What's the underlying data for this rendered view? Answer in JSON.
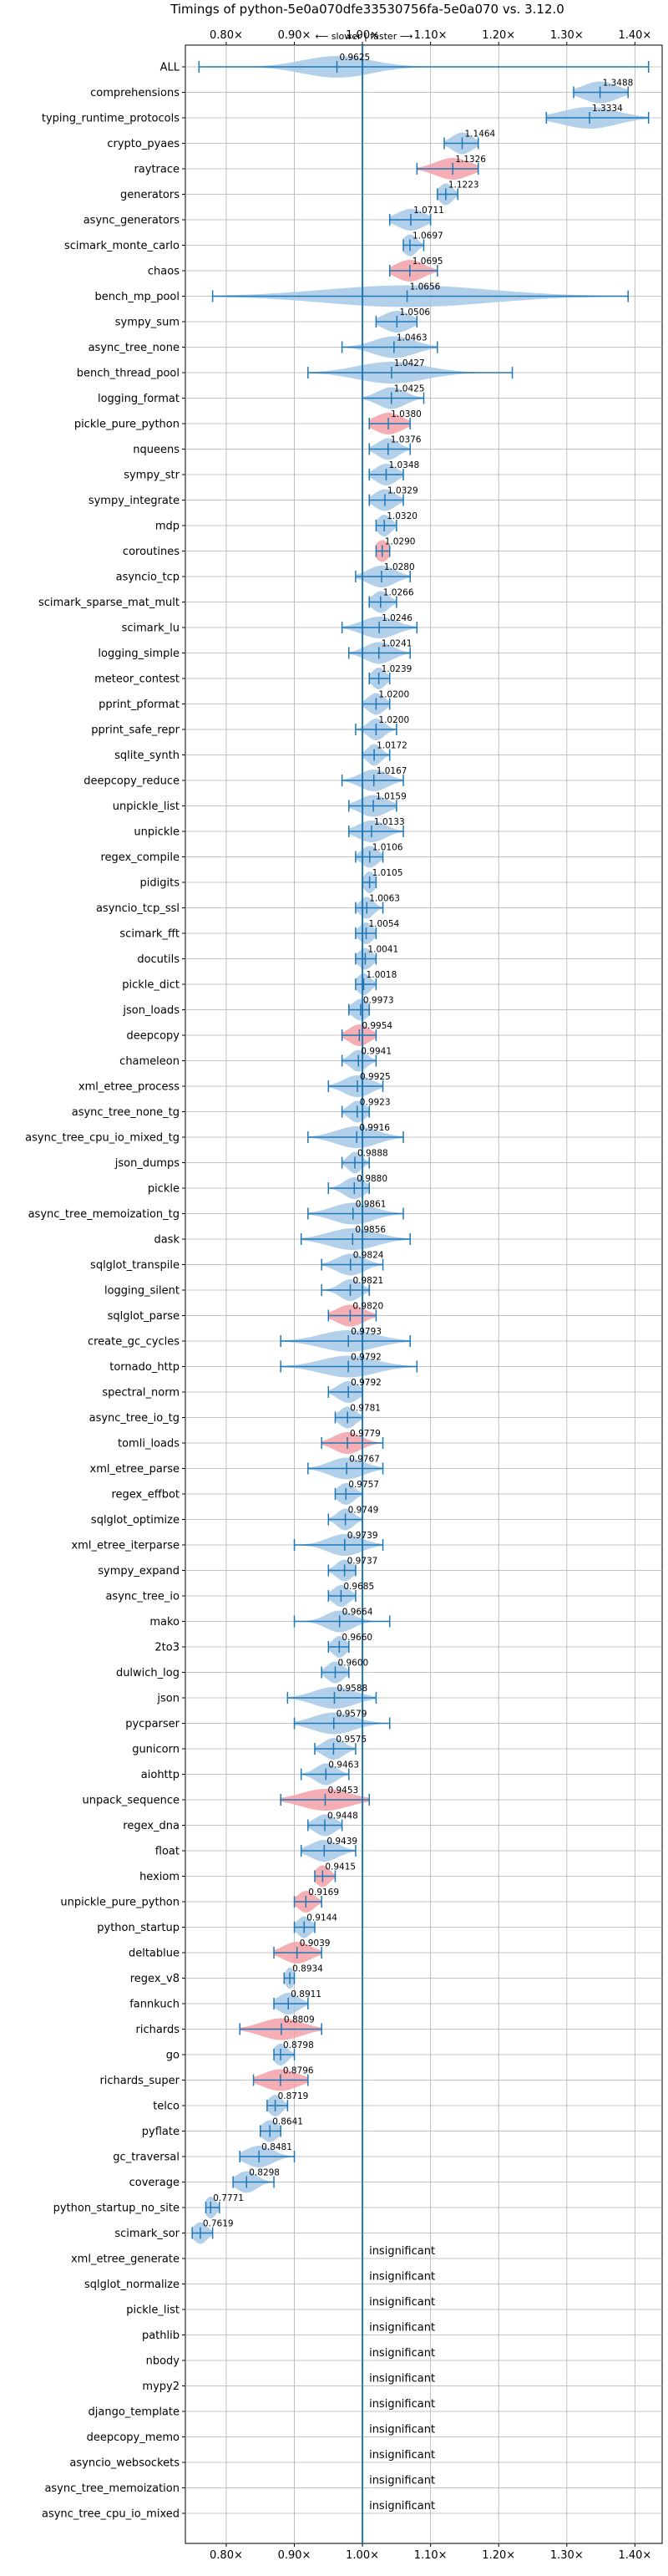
{
  "chart_data": {
    "type": "violin",
    "title": "Timings of python-5e0a070dfe33530756fa-5e0a070 vs. 3.12.0",
    "direction_label": "⟵ slower | faster ⟶",
    "xlim": [
      0.74,
      1.44
    ],
    "xticks": [
      0.8,
      0.9,
      1.0,
      1.1,
      1.2,
      1.3,
      1.4
    ],
    "xtick_labels": [
      "0.80×",
      "0.90×",
      "1.00×",
      "1.10×",
      "1.20×",
      "1.30×",
      "1.40×"
    ],
    "grid": true,
    "reference_line": 1.0,
    "insignificant_label": "insignificant",
    "colors": {
      "normal": "#a6c8e8",
      "highlight": "#f4a0a8",
      "line": "#1f77b4",
      "grid": "#b0b0b0"
    },
    "benchmarks": [
      {
        "name": "ALL",
        "value": 0.9625,
        "min": 0.76,
        "max": 1.42,
        "spread": 0.05,
        "highlight": false,
        "value_label": "0.9625"
      },
      {
        "name": "comprehensions",
        "value": 1.3488,
        "min": 1.31,
        "max": 1.39,
        "spread": 0.025,
        "highlight": false,
        "value_label": "1.3488"
      },
      {
        "name": "typing_runtime_protocols",
        "value": 1.3334,
        "min": 1.27,
        "max": 1.42,
        "spread": 0.04,
        "highlight": false,
        "value_label": "1.3334"
      },
      {
        "name": "crypto_pyaes",
        "value": 1.1464,
        "min": 1.12,
        "max": 1.17,
        "spread": 0.015,
        "highlight": false,
        "value_label": "1.1464"
      },
      {
        "name": "raytrace",
        "value": 1.1326,
        "min": 1.08,
        "max": 1.17,
        "spread": 0.025,
        "highlight": true,
        "value_label": "1.1326"
      },
      {
        "name": "generators",
        "value": 1.1223,
        "min": 1.11,
        "max": 1.14,
        "spread": 0.01,
        "highlight": false,
        "value_label": "1.1223"
      },
      {
        "name": "async_generators",
        "value": 1.0711,
        "min": 1.04,
        "max": 1.1,
        "spread": 0.02,
        "highlight": false,
        "value_label": "1.0711"
      },
      {
        "name": "scimark_monte_carlo",
        "value": 1.0697,
        "min": 1.06,
        "max": 1.09,
        "spread": 0.01,
        "highlight": false,
        "value_label": "1.0697"
      },
      {
        "name": "chaos",
        "value": 1.0695,
        "min": 1.04,
        "max": 1.11,
        "spread": 0.02,
        "highlight": true,
        "value_label": "1.0695"
      },
      {
        "name": "bench_mp_pool",
        "value": 1.0656,
        "min": 0.78,
        "max": 1.39,
        "spread": 0.12,
        "highlight": false,
        "value_label": "1.0656"
      },
      {
        "name": "sympy_sum",
        "value": 1.0506,
        "min": 1.02,
        "max": 1.08,
        "spread": 0.02,
        "highlight": false,
        "value_label": "1.0506"
      },
      {
        "name": "async_tree_none",
        "value": 1.0463,
        "min": 0.97,
        "max": 1.11,
        "spread": 0.03,
        "highlight": false,
        "value_label": "1.0463"
      },
      {
        "name": "bench_thread_pool",
        "value": 1.0427,
        "min": 0.92,
        "max": 1.22,
        "spread": 0.05,
        "highlight": false,
        "value_label": "1.0427"
      },
      {
        "name": "logging_format",
        "value": 1.0425,
        "min": 1.0,
        "max": 1.09,
        "spread": 0.02,
        "highlight": false,
        "value_label": "1.0425"
      },
      {
        "name": "pickle_pure_python",
        "value": 1.038,
        "min": 1.01,
        "max": 1.07,
        "spread": 0.02,
        "highlight": true,
        "value_label": "1.0380"
      },
      {
        "name": "nqueens",
        "value": 1.0376,
        "min": 1.01,
        "max": 1.07,
        "spread": 0.015,
        "highlight": false,
        "value_label": "1.0376"
      },
      {
        "name": "sympy_str",
        "value": 1.0348,
        "min": 1.01,
        "max": 1.06,
        "spread": 0.015,
        "highlight": false,
        "value_label": "1.0348"
      },
      {
        "name": "sympy_integrate",
        "value": 1.0329,
        "min": 1.01,
        "max": 1.06,
        "spread": 0.015,
        "highlight": false,
        "value_label": "1.0329"
      },
      {
        "name": "mdp",
        "value": 1.032,
        "min": 1.02,
        "max": 1.05,
        "spread": 0.01,
        "highlight": false,
        "value_label": "1.0320"
      },
      {
        "name": "coroutines",
        "value": 1.029,
        "min": 1.02,
        "max": 1.04,
        "spread": 0.01,
        "highlight": true,
        "value_label": "1.0290"
      },
      {
        "name": "asyncio_tcp",
        "value": 1.028,
        "min": 0.99,
        "max": 1.07,
        "spread": 0.02,
        "highlight": false,
        "value_label": "1.0280"
      },
      {
        "name": "scimark_sparse_mat_mult",
        "value": 1.0266,
        "min": 1.01,
        "max": 1.05,
        "spread": 0.012,
        "highlight": false,
        "value_label": "1.0266"
      },
      {
        "name": "scimark_lu",
        "value": 1.0246,
        "min": 0.97,
        "max": 1.08,
        "spread": 0.025,
        "highlight": false,
        "value_label": "1.0246"
      },
      {
        "name": "logging_simple",
        "value": 1.0241,
        "min": 0.98,
        "max": 1.07,
        "spread": 0.02,
        "highlight": false,
        "value_label": "1.0241"
      },
      {
        "name": "meteor_contest",
        "value": 1.0239,
        "min": 1.01,
        "max": 1.04,
        "spread": 0.01,
        "highlight": false,
        "value_label": "1.0239"
      },
      {
        "name": "pprint_pformat",
        "value": 1.02,
        "min": 1.0,
        "max": 1.04,
        "spread": 0.012,
        "highlight": false,
        "value_label": "1.0200"
      },
      {
        "name": "pprint_safe_repr",
        "value": 1.02,
        "min": 0.99,
        "max": 1.05,
        "spread": 0.012,
        "highlight": false,
        "value_label": "1.0200"
      },
      {
        "name": "sqlite_synth",
        "value": 1.0172,
        "min": 1.0,
        "max": 1.04,
        "spread": 0.01,
        "highlight": false,
        "value_label": "1.0172"
      },
      {
        "name": "deepcopy_reduce",
        "value": 1.0167,
        "min": 0.97,
        "max": 1.06,
        "spread": 0.02,
        "highlight": false,
        "value_label": "1.0167"
      },
      {
        "name": "unpickle_list",
        "value": 1.0159,
        "min": 0.98,
        "max": 1.05,
        "spread": 0.02,
        "highlight": false,
        "value_label": "1.0159"
      },
      {
        "name": "unpickle",
        "value": 1.0133,
        "min": 0.98,
        "max": 1.06,
        "spread": 0.02,
        "highlight": false,
        "value_label": "1.0133"
      },
      {
        "name": "regex_compile",
        "value": 1.0106,
        "min": 0.99,
        "max": 1.03,
        "spread": 0.012,
        "highlight": false,
        "value_label": "1.0106"
      },
      {
        "name": "pidigits",
        "value": 1.0105,
        "min": 1.0,
        "max": 1.02,
        "spread": 0.008,
        "highlight": false,
        "value_label": "1.0105"
      },
      {
        "name": "asyncio_tcp_ssl",
        "value": 1.0063,
        "min": 0.99,
        "max": 1.03,
        "spread": 0.01,
        "highlight": false,
        "value_label": "1.0063"
      },
      {
        "name": "scimark_fft",
        "value": 1.0054,
        "min": 0.99,
        "max": 1.02,
        "spread": 0.01,
        "highlight": false,
        "value_label": "1.0054"
      },
      {
        "name": "docutils",
        "value": 1.0041,
        "min": 0.99,
        "max": 1.02,
        "spread": 0.01,
        "highlight": false,
        "value_label": "1.0041"
      },
      {
        "name": "pickle_dict",
        "value": 1.0018,
        "min": 0.99,
        "max": 1.02,
        "spread": 0.01,
        "highlight": false,
        "value_label": "1.0018"
      },
      {
        "name": "json_loads",
        "value": 0.9973,
        "min": 0.98,
        "max": 1.01,
        "spread": 0.012,
        "highlight": false,
        "value_label": "0.9973"
      },
      {
        "name": "deepcopy",
        "value": 0.9954,
        "min": 0.97,
        "max": 1.02,
        "spread": 0.015,
        "highlight": true,
        "value_label": "0.9954"
      },
      {
        "name": "chameleon",
        "value": 0.9941,
        "min": 0.97,
        "max": 1.02,
        "spread": 0.012,
        "highlight": false,
        "value_label": "0.9941"
      },
      {
        "name": "xml_etree_process",
        "value": 0.9925,
        "min": 0.95,
        "max": 1.03,
        "spread": 0.02,
        "highlight": false,
        "value_label": "0.9925"
      },
      {
        "name": "async_tree_none_tg",
        "value": 0.9923,
        "min": 0.97,
        "max": 1.01,
        "spread": 0.012,
        "highlight": false,
        "value_label": "0.9923"
      },
      {
        "name": "async_tree_cpu_io_mixed_tg",
        "value": 0.9916,
        "min": 0.92,
        "max": 1.06,
        "spread": 0.03,
        "highlight": false,
        "value_label": "0.9916"
      },
      {
        "name": "json_dumps",
        "value": 0.9888,
        "min": 0.97,
        "max": 1.01,
        "spread": 0.01,
        "highlight": false,
        "value_label": "0.9888"
      },
      {
        "name": "pickle",
        "value": 0.988,
        "min": 0.95,
        "max": 1.01,
        "spread": 0.015,
        "highlight": false,
        "value_label": "0.9880"
      },
      {
        "name": "async_tree_memoization_tg",
        "value": 0.9861,
        "min": 0.92,
        "max": 1.06,
        "spread": 0.03,
        "highlight": false,
        "value_label": "0.9861"
      },
      {
        "name": "dask",
        "value": 0.9856,
        "min": 0.91,
        "max": 1.07,
        "spread": 0.035,
        "highlight": false,
        "value_label": "0.9856"
      },
      {
        "name": "sqlglot_transpile",
        "value": 0.9824,
        "min": 0.94,
        "max": 1.03,
        "spread": 0.02,
        "highlight": false,
        "value_label": "0.9824"
      },
      {
        "name": "logging_silent",
        "value": 0.9821,
        "min": 0.94,
        "max": 1.01,
        "spread": 0.015,
        "highlight": false,
        "value_label": "0.9821"
      },
      {
        "name": "sqlglot_parse",
        "value": 0.982,
        "min": 0.95,
        "max": 1.02,
        "spread": 0.02,
        "highlight": true,
        "value_label": "0.9820"
      },
      {
        "name": "create_gc_cycles",
        "value": 0.9793,
        "min": 0.88,
        "max": 1.07,
        "spread": 0.04,
        "highlight": false,
        "value_label": "0.9793"
      },
      {
        "name": "tornado_http",
        "value": 0.9792,
        "min": 0.88,
        "max": 1.08,
        "spread": 0.04,
        "highlight": false,
        "value_label": "0.9792"
      },
      {
        "name": "spectral_norm",
        "value": 0.9792,
        "min": 0.95,
        "max": 1.0,
        "spread": 0.015,
        "highlight": false,
        "value_label": "0.9792"
      },
      {
        "name": "async_tree_io_tg",
        "value": 0.9781,
        "min": 0.96,
        "max": 1.0,
        "spread": 0.012,
        "highlight": false,
        "value_label": "0.9781"
      },
      {
        "name": "tomli_loads",
        "value": 0.9779,
        "min": 0.94,
        "max": 1.03,
        "spread": 0.02,
        "highlight": true,
        "value_label": "0.9779"
      },
      {
        "name": "xml_etree_parse",
        "value": 0.9767,
        "min": 0.92,
        "max": 1.03,
        "spread": 0.025,
        "highlight": false,
        "value_label": "0.9767"
      },
      {
        "name": "regex_effbot",
        "value": 0.9757,
        "min": 0.96,
        "max": 1.0,
        "spread": 0.012,
        "highlight": false,
        "value_label": "0.9757"
      },
      {
        "name": "sqlglot_optimize",
        "value": 0.9749,
        "min": 0.95,
        "max": 1.0,
        "spread": 0.012,
        "highlight": false,
        "value_label": "0.9749"
      },
      {
        "name": "xml_etree_iterparse",
        "value": 0.9739,
        "min": 0.9,
        "max": 1.03,
        "spread": 0.025,
        "highlight": false,
        "value_label": "0.9739"
      },
      {
        "name": "sympy_expand",
        "value": 0.9737,
        "min": 0.95,
        "max": 0.99,
        "spread": 0.012,
        "highlight": false,
        "value_label": "0.9737"
      },
      {
        "name": "async_tree_io",
        "value": 0.9685,
        "min": 0.95,
        "max": 0.99,
        "spread": 0.012,
        "highlight": false,
        "value_label": "0.9685"
      },
      {
        "name": "mako",
        "value": 0.9664,
        "min": 0.9,
        "max": 1.04,
        "spread": 0.02,
        "highlight": false,
        "value_label": "0.9664"
      },
      {
        "name": "2to3",
        "value": 0.966,
        "min": 0.95,
        "max": 0.98,
        "spread": 0.01,
        "highlight": false,
        "value_label": "0.9660"
      },
      {
        "name": "dulwich_log",
        "value": 0.96,
        "min": 0.94,
        "max": 0.98,
        "spread": 0.012,
        "highlight": false,
        "value_label": "0.9600"
      },
      {
        "name": "json",
        "value": 0.9588,
        "min": 0.89,
        "max": 1.02,
        "spread": 0.03,
        "highlight": false,
        "value_label": "0.9588"
      },
      {
        "name": "pycparser",
        "value": 0.9579,
        "min": 0.9,
        "max": 1.04,
        "spread": 0.03,
        "highlight": false,
        "value_label": "0.9579"
      },
      {
        "name": "gunicorn",
        "value": 0.9575,
        "min": 0.93,
        "max": 0.99,
        "spread": 0.015,
        "highlight": false,
        "value_label": "0.9575"
      },
      {
        "name": "aiohttp",
        "value": 0.9463,
        "min": 0.91,
        "max": 0.98,
        "spread": 0.015,
        "highlight": false,
        "value_label": "0.9463"
      },
      {
        "name": "unpack_sequence",
        "value": 0.9453,
        "min": 0.88,
        "max": 1.01,
        "spread": 0.035,
        "highlight": true,
        "value_label": "0.9453"
      },
      {
        "name": "regex_dna",
        "value": 0.9448,
        "min": 0.92,
        "max": 0.97,
        "spread": 0.015,
        "highlight": false,
        "value_label": "0.9448"
      },
      {
        "name": "float",
        "value": 0.9439,
        "min": 0.91,
        "max": 0.99,
        "spread": 0.02,
        "highlight": false,
        "value_label": "0.9439"
      },
      {
        "name": "hexiom",
        "value": 0.9415,
        "min": 0.93,
        "max": 0.96,
        "spread": 0.01,
        "highlight": true,
        "value_label": "0.9415"
      },
      {
        "name": "unpickle_pure_python",
        "value": 0.9169,
        "min": 0.9,
        "max": 0.94,
        "spread": 0.012,
        "highlight": true,
        "value_label": "0.9169"
      },
      {
        "name": "python_startup",
        "value": 0.9144,
        "min": 0.9,
        "max": 0.93,
        "spread": 0.01,
        "highlight": false,
        "value_label": "0.9144"
      },
      {
        "name": "deltablue",
        "value": 0.9039,
        "min": 0.87,
        "max": 0.94,
        "spread": 0.02,
        "highlight": true,
        "value_label": "0.9039"
      },
      {
        "name": "regex_v8",
        "value": 0.8934,
        "min": 0.885,
        "max": 0.9,
        "spread": 0.006,
        "highlight": false,
        "value_label": "0.8934"
      },
      {
        "name": "fannkuch",
        "value": 0.8911,
        "min": 0.87,
        "max": 0.92,
        "spread": 0.015,
        "highlight": false,
        "value_label": "0.8911"
      },
      {
        "name": "richards",
        "value": 0.8809,
        "min": 0.82,
        "max": 0.94,
        "spread": 0.03,
        "highlight": true,
        "value_label": "0.8809"
      },
      {
        "name": "go",
        "value": 0.8798,
        "min": 0.87,
        "max": 0.9,
        "spread": 0.01,
        "highlight": false,
        "value_label": "0.8798"
      },
      {
        "name": "richards_super",
        "value": 0.8796,
        "min": 0.84,
        "max": 0.92,
        "spread": 0.025,
        "highlight": true,
        "value_label": "0.8796"
      },
      {
        "name": "telco",
        "value": 0.8719,
        "min": 0.86,
        "max": 0.89,
        "spread": 0.01,
        "highlight": false,
        "value_label": "0.8719"
      },
      {
        "name": "pyflate",
        "value": 0.8641,
        "min": 0.85,
        "max": 0.88,
        "spread": 0.012,
        "highlight": false,
        "value_label": "0.8641"
      },
      {
        "name": "gc_traversal",
        "value": 0.8481,
        "min": 0.82,
        "max": 0.9,
        "spread": 0.02,
        "highlight": false,
        "value_label": "0.8481"
      },
      {
        "name": "coverage",
        "value": 0.8298,
        "min": 0.81,
        "max": 0.87,
        "spread": 0.015,
        "highlight": false,
        "value_label": "0.8298"
      },
      {
        "name": "python_startup_no_site",
        "value": 0.7771,
        "min": 0.77,
        "max": 0.79,
        "spread": 0.008,
        "highlight": false,
        "value_label": "0.7771"
      },
      {
        "name": "scimark_sor",
        "value": 0.7619,
        "min": 0.75,
        "max": 0.78,
        "spread": 0.01,
        "highlight": false,
        "value_label": "0.7619"
      },
      {
        "name": "xml_etree_generate",
        "insignificant": true
      },
      {
        "name": "sqlglot_normalize",
        "insignificant": true
      },
      {
        "name": "pickle_list",
        "insignificant": true
      },
      {
        "name": "pathlib",
        "insignificant": true
      },
      {
        "name": "nbody",
        "insignificant": true
      },
      {
        "name": "mypy2",
        "insignificant": true
      },
      {
        "name": "django_template",
        "insignificant": true
      },
      {
        "name": "deepcopy_memo",
        "insignificant": true
      },
      {
        "name": "asyncio_websockets",
        "insignificant": true
      },
      {
        "name": "async_tree_memoization",
        "insignificant": true
      },
      {
        "name": "async_tree_cpu_io_mixed",
        "insignificant": true
      }
    ]
  }
}
